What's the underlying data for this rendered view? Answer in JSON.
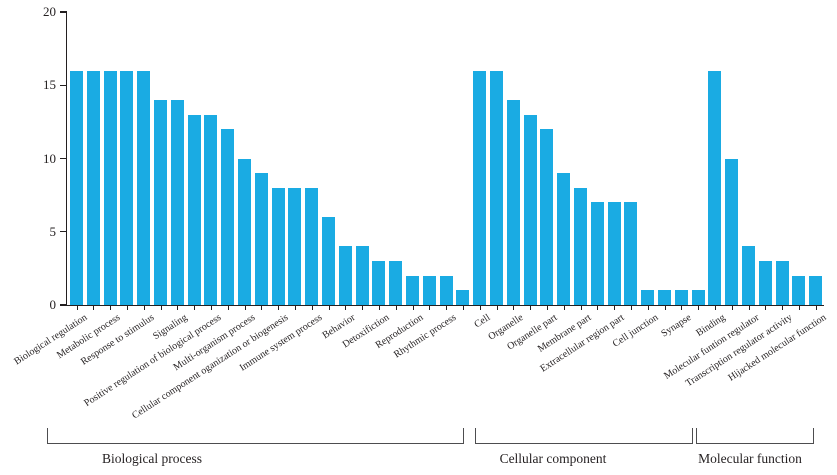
{
  "chart_data": {
    "type": "bar",
    "title": "",
    "xlabel": "",
    "ylabel": "",
    "ylim": [
      0,
      20
    ],
    "yticks": [
      0,
      5,
      10,
      15,
      20
    ],
    "grid": "off",
    "legend": "none",
    "bar_color": "#1aabe3",
    "axis_color": "#231f20",
    "bracket_color": "#4d4d4f",
    "note": "bars without text have no tick label in the figure; labels appear under every other bar",
    "groups": [
      {
        "name": "Biological process",
        "bars": [
          {
            "label": "Biological regulation",
            "value": 16
          },
          {
            "label": "",
            "value": 16
          },
          {
            "label": "Metabolic process",
            "value": 16
          },
          {
            "label": "",
            "value": 16
          },
          {
            "label": "Response to stimulus",
            "value": 16
          },
          {
            "label": "",
            "value": 14
          },
          {
            "label": "Signaling",
            "value": 14
          },
          {
            "label": "",
            "value": 13
          },
          {
            "label": "Positive regulation of biological process",
            "value": 13
          },
          {
            "label": "",
            "value": 12
          },
          {
            "label": "Multi-organism process",
            "value": 10
          },
          {
            "label": "",
            "value": 9
          },
          {
            "label": "Cellular component oganization or biogenesis",
            "value": 8
          },
          {
            "label": "",
            "value": 8
          },
          {
            "label": "Immune system process",
            "value": 8
          },
          {
            "label": "",
            "value": 6
          },
          {
            "label": "Behavior",
            "value": 4
          },
          {
            "label": "",
            "value": 4
          },
          {
            "label": "Detoxifiction",
            "value": 3
          },
          {
            "label": "",
            "value": 3
          },
          {
            "label": "Reproduction",
            "value": 2
          },
          {
            "label": "",
            "value": 2
          },
          {
            "label": "Rhythmic process",
            "value": 2
          },
          {
            "label": "",
            "value": 1
          }
        ]
      },
      {
        "name": "Cellular component",
        "bars": [
          {
            "label": "Cell",
            "value": 16
          },
          {
            "label": "",
            "value": 16
          },
          {
            "label": "Organelle",
            "value": 14
          },
          {
            "label": "",
            "value": 13
          },
          {
            "label": "Organelle part",
            "value": 12
          },
          {
            "label": "",
            "value": 9
          },
          {
            "label": "Membrane part",
            "value": 8
          },
          {
            "label": "",
            "value": 7
          },
          {
            "label": "Extracellular region part",
            "value": 7
          },
          {
            "label": "",
            "value": 7
          },
          {
            "label": "Cell junction",
            "value": 1
          },
          {
            "label": "",
            "value": 1
          },
          {
            "label": "Synapse",
            "value": 1
          },
          {
            "label": "",
            "value": 1
          }
        ]
      },
      {
        "name": "Molecular function",
        "bars": [
          {
            "label": "Binding",
            "value": 16
          },
          {
            "label": "",
            "value": 10
          },
          {
            "label": "Molecular funtion regulator",
            "value": 4
          },
          {
            "label": "",
            "value": 3
          },
          {
            "label": "Transcription regulator activity",
            "value": 3
          },
          {
            "label": "",
            "value": 2
          },
          {
            "label": "Hijacked molecular function",
            "value": 2
          }
        ]
      }
    ]
  }
}
